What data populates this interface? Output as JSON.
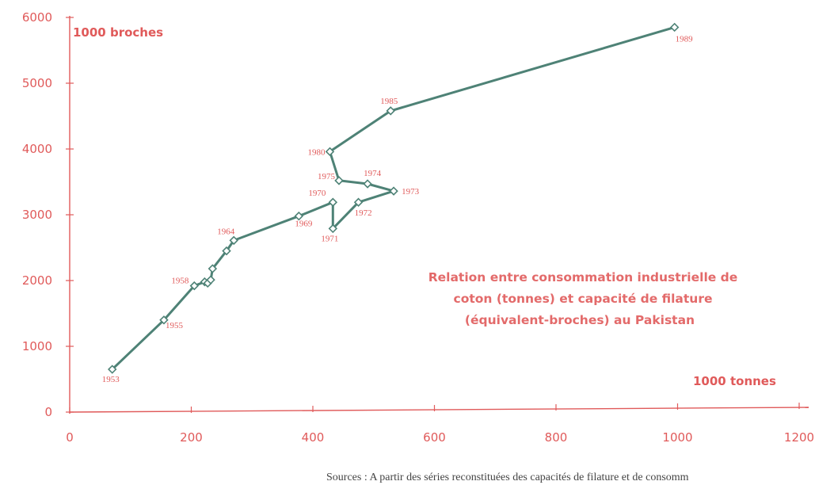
{
  "chart_data": {
    "type": "line",
    "title_lines": [
      "Relation entre consommation industrielle de",
      "coton (tonnes) et capacité de filature",
      "(équivalent-broches) au Pakistan"
    ],
    "xlabel": "1000 tonnes",
    "ylabel": "1000 broches",
    "xlim": [
      0,
      1200
    ],
    "ylim": [
      0,
      6000
    ],
    "x_ticks": [
      0,
      200,
      400,
      600,
      800,
      1000,
      1200
    ],
    "y_ticks": [
      0,
      1000,
      2000,
      3000,
      4000,
      5000,
      6000
    ],
    "grid": false,
    "series": [
      {
        "points": [
          {
            "year": "1953",
            "x": 70,
            "y": 650
          },
          {
            "year": "1955",
            "x": 155,
            "y": 1400
          },
          {
            "year": "1958",
            "x": 205,
            "y": 1920
          },
          {
            "year": "",
            "x": 222,
            "y": 1980
          },
          {
            "year": "",
            "x": 227,
            "y": 1960
          },
          {
            "year": "",
            "x": 232,
            "y": 2010
          },
          {
            "year": "",
            "x": 235,
            "y": 2180
          },
          {
            "year": "",
            "x": 258,
            "y": 2450
          },
          {
            "year": "1964",
            "x": 270,
            "y": 2610
          },
          {
            "year": "1969",
            "x": 377,
            "y": 2980
          },
          {
            "year": "1970",
            "x": 433,
            "y": 3190
          },
          {
            "year": "1971",
            "x": 433,
            "y": 2790
          },
          {
            "year": "1972",
            "x": 475,
            "y": 3190
          },
          {
            "year": "1973",
            "x": 533,
            "y": 3360
          },
          {
            "year": "1974",
            "x": 490,
            "y": 3470
          },
          {
            "year": "1975",
            "x": 443,
            "y": 3520
          },
          {
            "year": "1980",
            "x": 428,
            "y": 3960
          },
          {
            "year": "1985",
            "x": 528,
            "y": 4580
          },
          {
            "year": "1989",
            "x": 995,
            "y": 5850
          }
        ]
      }
    ]
  },
  "source_note": "Sources : A partir des séries reconstituées des capacités de filature et de consomm",
  "colors": {
    "axis": "#e05a5a",
    "line": "#4e8276",
    "marker_fill": "#ffffff",
    "marker_stroke": "#4e8276"
  }
}
